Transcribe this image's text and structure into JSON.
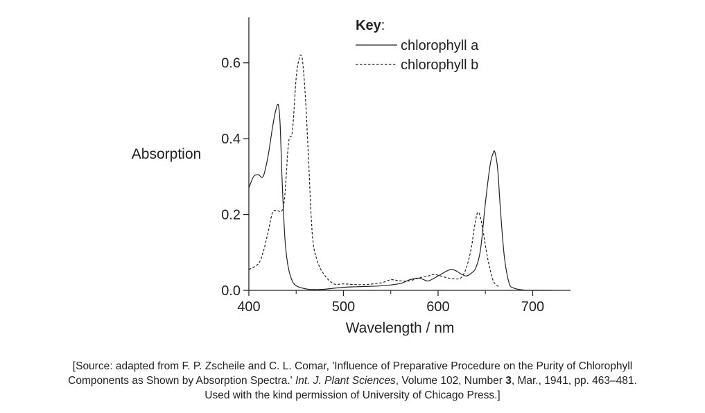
{
  "chart_data": {
    "type": "line",
    "title": "",
    "xlabel": "Wavelength / nm",
    "ylabel": "Absorption",
    "xlim": [
      400,
      740
    ],
    "ylim": [
      0,
      0.72
    ],
    "xticks": [
      400,
      500,
      600,
      700
    ],
    "xtick_labels": [
      "400",
      "500",
      "600",
      "700"
    ],
    "xminor": [
      450,
      550,
      650
    ],
    "yticks": [
      0.0,
      0.2,
      0.4,
      0.6
    ],
    "ytick_labels": [
      "0.0",
      "0.2",
      "0.4",
      "0.6"
    ],
    "grid": false,
    "legend": {
      "title": "Key",
      "title_suffix": ":",
      "placement": "top-right"
    },
    "series": [
      {
        "name": "chlorophyll a",
        "style": "solid",
        "x": [
          400,
          405,
          410,
          415,
          420,
          425,
          428,
          431,
          433,
          435,
          438,
          441,
          445,
          450,
          460,
          470,
          480,
          500,
          520,
          540,
          560,
          570,
          580,
          585,
          590,
          600,
          610,
          615,
          620,
          625,
          630,
          635,
          640,
          645,
          650,
          655,
          658,
          660,
          663,
          666,
          670,
          675,
          680,
          690,
          700,
          720
        ],
        "y": [
          0.27,
          0.3,
          0.305,
          0.3,
          0.35,
          0.43,
          0.47,
          0.49,
          0.44,
          0.3,
          0.14,
          0.07,
          0.03,
          0.012,
          0.004,
          0.002,
          0.003,
          0.008,
          0.01,
          0.012,
          0.018,
          0.028,
          0.032,
          0.028,
          0.025,
          0.038,
          0.052,
          0.055,
          0.05,
          0.042,
          0.038,
          0.045,
          0.06,
          0.11,
          0.23,
          0.33,
          0.36,
          0.365,
          0.32,
          0.21,
          0.09,
          0.02,
          0.006,
          0.001,
          0.0,
          0.0
        ]
      },
      {
        "name": "chlorophyll b",
        "style": "dashed",
        "x": [
          400,
          410,
          415,
          420,
          425,
          430,
          435,
          438,
          442,
          446,
          450,
          453,
          455,
          457,
          460,
          463,
          467,
          472,
          480,
          490,
          500,
          520,
          540,
          550,
          560,
          570,
          580,
          590,
          595,
          600,
          610,
          620,
          625,
          630,
          635,
          638,
          641,
          643,
          645,
          648,
          652,
          657,
          660,
          664
        ],
        "y": [
          0.055,
          0.07,
          0.1,
          0.15,
          0.205,
          0.21,
          0.21,
          0.25,
          0.39,
          0.42,
          0.56,
          0.61,
          0.62,
          0.6,
          0.5,
          0.35,
          0.15,
          0.08,
          0.04,
          0.017,
          0.017,
          0.015,
          0.02,
          0.028,
          0.025,
          0.025,
          0.033,
          0.038,
          0.042,
          0.04,
          0.033,
          0.03,
          0.035,
          0.06,
          0.11,
          0.16,
          0.2,
          0.205,
          0.19,
          0.15,
          0.09,
          0.035,
          0.018,
          0.01
        ]
      }
    ]
  },
  "source": {
    "line1": "[Source: adapted from F. P. Zscheile and C. L. Comar, 'Influence of Preparative Procedure on the Purity of Chlorophyll",
    "line2_a": "Components as Shown by Absorption Spectra.' ",
    "line2_journal": "Int. J. Plant Sciences",
    "line2_b": ", Volume 102, Number ",
    "line2_number": "3",
    "line2_c": ", Mar., 1941, pp. 463–481.",
    "line3": "Used with the kind permission of University of Chicago Press.]"
  }
}
